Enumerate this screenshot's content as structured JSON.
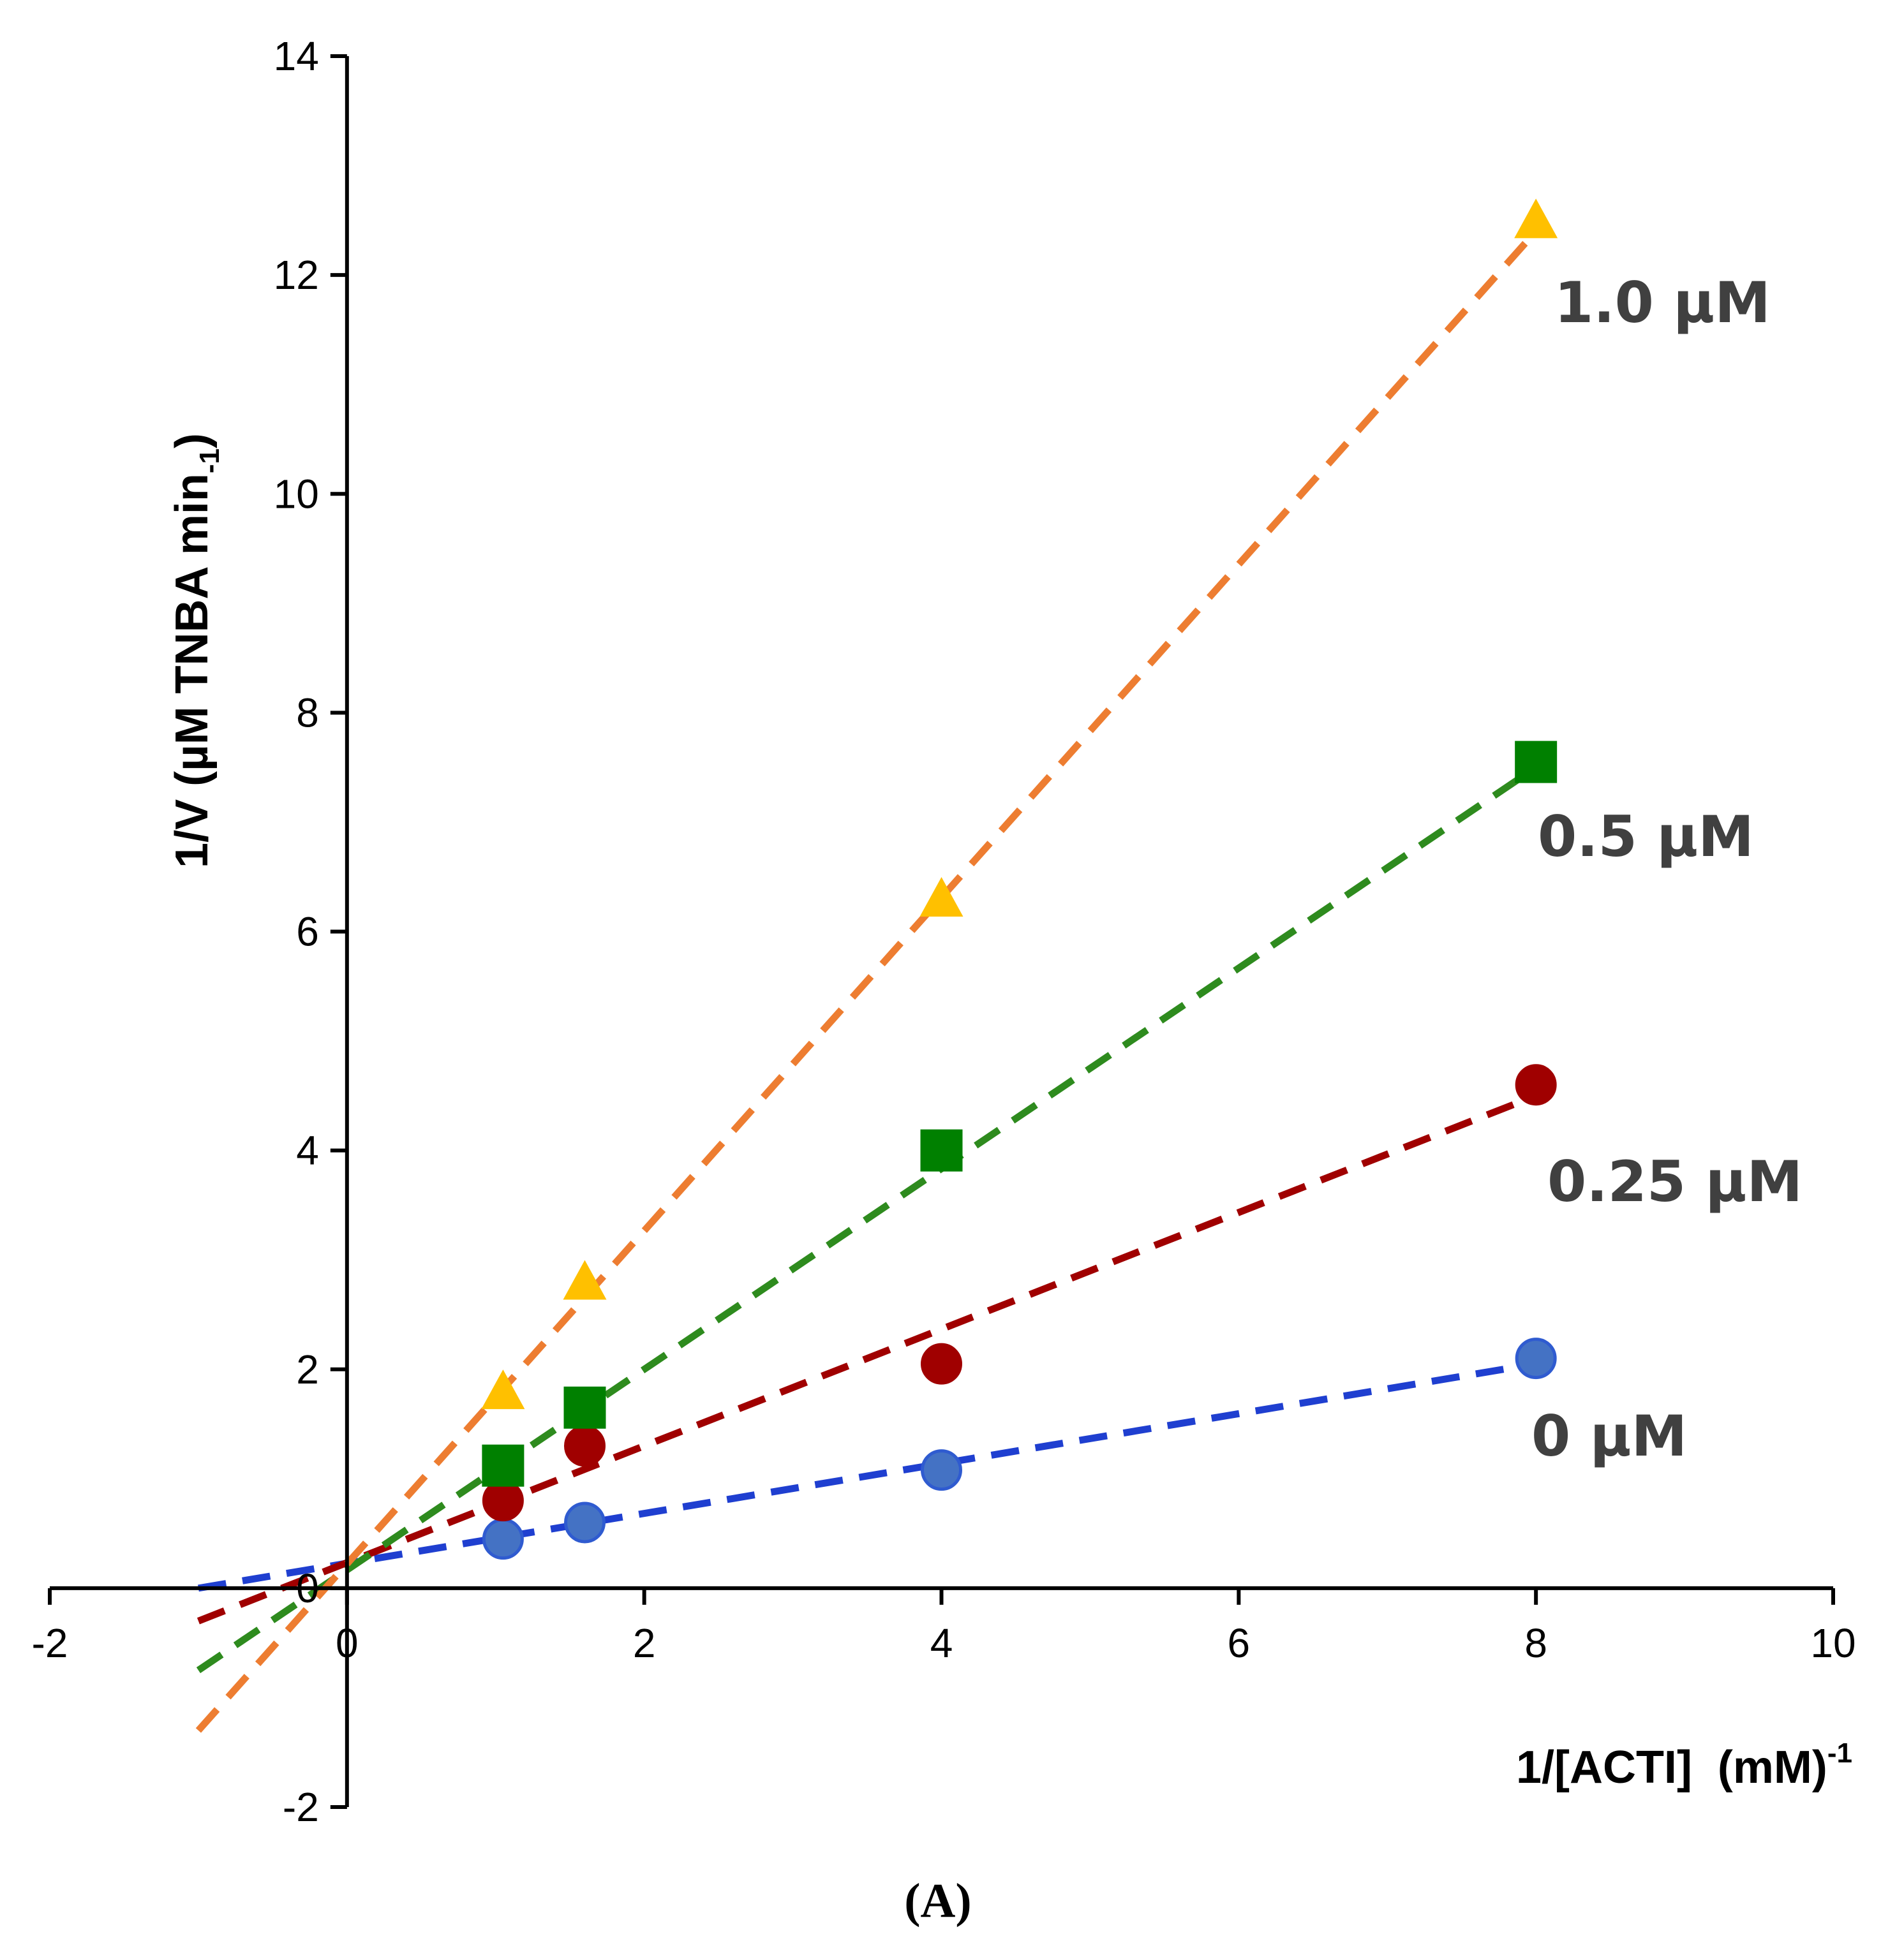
{
  "chart_data": {
    "type": "scatter",
    "title": "",
    "caption": "(A)",
    "xlabel": "1/[ACTI]  (mM)",
    "xlabel_sup": "-1",
    "ylabel": "1/V (µM TNBA min",
    "ylabel_sub": "-1",
    "ylabel_close": ")",
    "xlim": [
      -2,
      10
    ],
    "ylim": [
      -2,
      14
    ],
    "x_ticks": [
      -2,
      0,
      2,
      4,
      6,
      8,
      10
    ],
    "x_tick_labels": [
      "-2",
      "0",
      "2",
      "4",
      "6",
      "8",
      "10"
    ],
    "y_ticks": [
      -2,
      0,
      2,
      4,
      6,
      8,
      10,
      12,
      14
    ],
    "y_tick_labels": [
      "-2",
      "0",
      "2",
      "4",
      "6",
      "8",
      "10",
      "12",
      "14"
    ],
    "series": [
      {
        "name": "0 µM",
        "marker": "circle",
        "marker_color": "#4472C4",
        "marker_edge": "#2F5BD0",
        "line_color": "#1F3FD0",
        "x": [
          1.05,
          1.6,
          4.0,
          8.0
        ],
        "y": [
          0.45,
          0.6,
          1.08,
          2.1
        ],
        "fit": {
          "x": [
            -1.0,
            8.0
          ],
          "y": [
            0.0,
            2.05
          ]
        }
      },
      {
        "name": "0.25 µM",
        "marker": "circle",
        "marker_color": "#A00000",
        "marker_edge": "#A00000",
        "line_color": "#A00000",
        "x": [
          1.05,
          1.6,
          4.0,
          8.0
        ],
        "y": [
          0.8,
          1.3,
          2.05,
          4.6
        ],
        "fit": {
          "x": [
            -1.0,
            8.0
          ],
          "y": [
            -0.3,
            4.5
          ]
        }
      },
      {
        "name": "0.5 µM",
        "marker": "square",
        "marker_color": "#008000",
        "marker_edge": "#008000",
        "line_color": "#2E8B1E",
        "x": [
          1.05,
          1.6,
          4.0,
          8.0
        ],
        "y": [
          1.12,
          1.65,
          4.0,
          7.55
        ],
        "fit": {
          "x": [
            -1.0,
            8.0
          ],
          "y": [
            -0.75,
            7.5
          ]
        }
      },
      {
        "name": "1.0 µM",
        "marker": "triangle",
        "marker_color": "#FFC000",
        "marker_edge": "#FFC000",
        "line_color": "#ED7D31",
        "x": [
          1.05,
          1.6,
          4.0,
          8.0
        ],
        "y": [
          1.8,
          2.8,
          6.3,
          12.5
        ],
        "fit": {
          "x": [
            -1.0,
            8.0
          ],
          "y": [
            -1.3,
            12.4
          ]
        }
      }
    ]
  }
}
